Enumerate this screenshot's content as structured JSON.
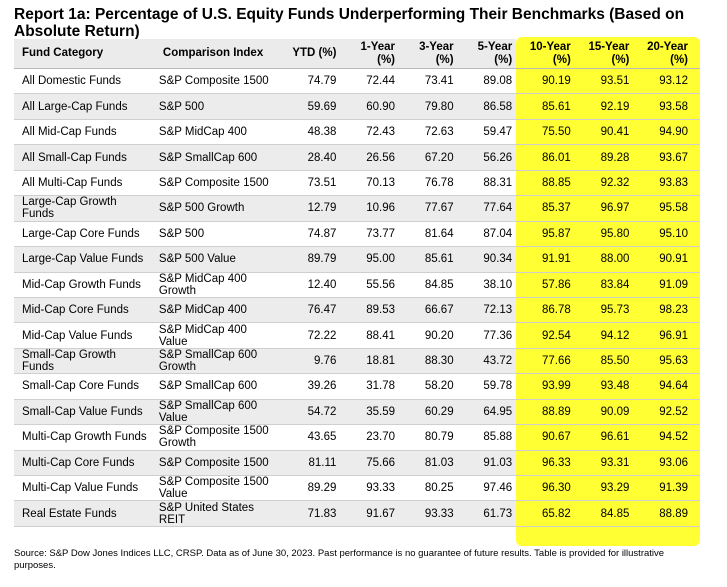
{
  "title": "Report 1a: Percentage of U.S. Equity Funds Underperforming Their Benchmarks (Based on Absolute Return)",
  "highlight_color": "#ffff33",
  "headers": [
    "Fund Category",
    "Comparison Index",
    "YTD (%)",
    "1-Year (%)",
    "3-Year (%)",
    "5-Year (%)",
    "10-Year (%)",
    "15-Year (%)",
    "20-Year (%)"
  ],
  "rows": [
    [
      "All Domestic Funds",
      "S&P Composite 1500",
      "74.79",
      "72.44",
      "73.41",
      "89.08",
      "90.19",
      "93.51",
      "93.12"
    ],
    [
      "All Large-Cap Funds",
      "S&P 500",
      "59.69",
      "60.90",
      "79.80",
      "86.58",
      "85.61",
      "92.19",
      "93.58"
    ],
    [
      "All Mid-Cap Funds",
      "S&P MidCap 400",
      "48.38",
      "72.43",
      "72.63",
      "59.47",
      "75.50",
      "90.41",
      "94.90"
    ],
    [
      "All Small-Cap Funds",
      "S&P SmallCap 600",
      "28.40",
      "26.56",
      "67.20",
      "56.26",
      "86.01",
      "89.28",
      "93.67"
    ],
    [
      "All Multi-Cap Funds",
      "S&P Composite 1500",
      "73.51",
      "70.13",
      "76.78",
      "88.31",
      "88.85",
      "92.32",
      "93.83"
    ],
    [
      "Large-Cap Growth Funds",
      "S&P 500 Growth",
      "12.79",
      "10.96",
      "77.67",
      "77.64",
      "85.37",
      "96.97",
      "95.58"
    ],
    [
      "Large-Cap Core Funds",
      "S&P 500",
      "74.87",
      "73.77",
      "81.64",
      "87.04",
      "95.87",
      "95.80",
      "95.10"
    ],
    [
      "Large-Cap Value Funds",
      "S&P 500 Value",
      "89.79",
      "95.00",
      "85.61",
      "90.34",
      "91.91",
      "88.00",
      "90.91"
    ],
    [
      "Mid-Cap Growth Funds",
      "S&P MidCap 400 Growth",
      "12.40",
      "55.56",
      "84.85",
      "38.10",
      "57.86",
      "83.84",
      "91.09"
    ],
    [
      "Mid-Cap Core Funds",
      "S&P MidCap 400",
      "76.47",
      "89.53",
      "66.67",
      "72.13",
      "86.78",
      "95.73",
      "98.23"
    ],
    [
      "Mid-Cap Value Funds",
      "S&P MidCap 400 Value",
      "72.22",
      "88.41",
      "90.20",
      "77.36",
      "92.54",
      "94.12",
      "96.91"
    ],
    [
      "Small-Cap Growth Funds",
      "S&P SmallCap 600 Growth",
      "9.76",
      "18.81",
      "88.30",
      "43.72",
      "77.66",
      "85.50",
      "95.63"
    ],
    [
      "Small-Cap Core Funds",
      "S&P SmallCap 600",
      "39.26",
      "31.78",
      "58.20",
      "59.78",
      "93.99",
      "93.48",
      "94.64"
    ],
    [
      "Small-Cap Value Funds",
      "S&P SmallCap 600 Value",
      "54.72",
      "35.59",
      "60.29",
      "64.95",
      "88.89",
      "90.09",
      "92.52"
    ],
    [
      "Multi-Cap Growth Funds",
      "S&P Composite 1500 Growth",
      "43.65",
      "23.70",
      "80.79",
      "85.88",
      "90.67",
      "96.61",
      "94.52"
    ],
    [
      "Multi-Cap Core Funds",
      "S&P Composite 1500",
      "81.11",
      "75.66",
      "81.03",
      "91.03",
      "96.33",
      "93.31",
      "93.06"
    ],
    [
      "Multi-Cap Value Funds",
      "S&P Composite 1500 Value",
      "89.29",
      "93.33",
      "80.25",
      "97.46",
      "96.30",
      "93.29",
      "91.39"
    ],
    [
      "Real Estate Funds",
      "S&P United States REIT",
      "71.83",
      "91.67",
      "93.33",
      "61.73",
      "65.82",
      "84.85",
      "88.89"
    ]
  ],
  "source": "Source: S&P Dow Jones Indices LLC, CRSP.  Data as of June 30, 2023.  Past performance is no guarantee of future results.  Table is provided for illustrative purposes."
}
